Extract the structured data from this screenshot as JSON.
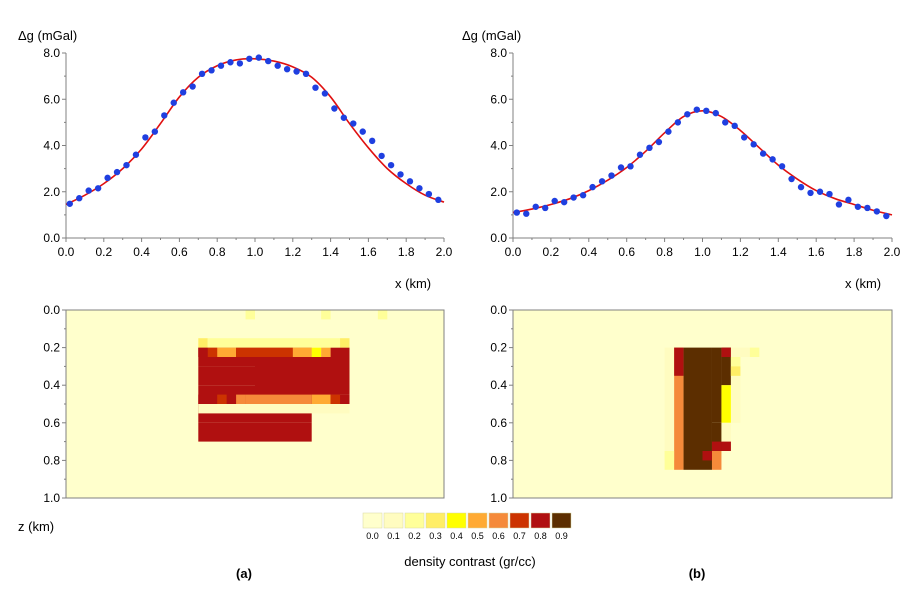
{
  "colors": {
    "observed": "#1f3fe0",
    "computed": "#e01010",
    "axis": "#808080",
    "frame": "#000000",
    "background_model": "#ffffcc"
  },
  "labels": {
    "panel_a": "(a)",
    "panel_b": "(b)",
    "z_axis": "z (km)",
    "colorbar_title": "density contrast (gr/cc)"
  },
  "colorbar": {
    "ticks": [
      "0.0",
      "0.1",
      "0.2",
      "0.3",
      "0.4",
      "0.5",
      "0.6",
      "0.7",
      "0.8",
      "0.9"
    ],
    "colors": [
      "#ffffcc",
      "#fffcc0",
      "#ffff99",
      "#ffee66",
      "#ffff00",
      "#ffaa33",
      "#f58a3a",
      "#cc3300",
      "#b01010",
      "#5c2e00"
    ]
  },
  "chart_data": [
    {
      "type": "scatter+line",
      "panel": "a",
      "ylabel": "Δg (mGal)",
      "xlabel": "x (km)",
      "xlim": [
        0.0,
        2.0
      ],
      "ylim": [
        0.0,
        8.0
      ],
      "xticks": [
        "0.0",
        "0.2",
        "0.4",
        "0.6",
        "0.8",
        "1.0",
        "1.2",
        "1.4",
        "1.6",
        "1.8",
        "2.0"
      ],
      "yticks": [
        "0.0",
        "2.0",
        "4.0",
        "6.0",
        "8.0"
      ],
      "series": [
        {
          "role": "observed",
          "x": [
            0.02,
            0.07,
            0.12,
            0.17,
            0.22,
            0.27,
            0.32,
            0.37,
            0.42,
            0.47,
            0.52,
            0.57,
            0.62,
            0.67,
            0.72,
            0.77,
            0.82,
            0.87,
            0.92,
            0.97,
            1.02,
            1.07,
            1.12,
            1.17,
            1.22,
            1.27,
            1.32,
            1.37,
            1.42,
            1.47,
            1.52,
            1.57,
            1.62,
            1.67,
            1.72,
            1.77,
            1.82,
            1.87,
            1.92,
            1.97
          ],
          "y": [
            1.48,
            1.72,
            2.05,
            2.15,
            2.6,
            2.85,
            3.15,
            3.6,
            4.35,
            4.6,
            5.3,
            5.85,
            6.3,
            6.55,
            7.1,
            7.25,
            7.45,
            7.6,
            7.55,
            7.75,
            7.8,
            7.65,
            7.45,
            7.3,
            7.2,
            7.1,
            6.5,
            6.25,
            5.6,
            5.2,
            4.95,
            4.6,
            4.2,
            3.55,
            3.15,
            2.75,
            2.45,
            2.15,
            1.9,
            1.65
          ]
        },
        {
          "role": "computed",
          "x": [
            0.0,
            0.1,
            0.2,
            0.3,
            0.4,
            0.5,
            0.6,
            0.7,
            0.8,
            0.9,
            1.0,
            1.1,
            1.2,
            1.3,
            1.4,
            1.5,
            1.6,
            1.7,
            1.8,
            1.9,
            2.0
          ],
          "y": [
            1.45,
            1.85,
            2.35,
            3.0,
            3.85,
            4.95,
            6.1,
            6.95,
            7.45,
            7.7,
            7.75,
            7.65,
            7.4,
            6.95,
            6.1,
            4.95,
            3.9,
            3.0,
            2.35,
            1.85,
            1.55
          ]
        }
      ]
    },
    {
      "type": "scatter+line",
      "panel": "b",
      "ylabel": "Δg (mGal)",
      "xlabel": "x (km)",
      "xlim": [
        0.0,
        2.0
      ],
      "ylim": [
        0.0,
        8.0
      ],
      "xticks": [
        "0.0",
        "0.2",
        "0.4",
        "0.6",
        "0.8",
        "1.0",
        "1.2",
        "1.4",
        "1.6",
        "1.8",
        "2.0"
      ],
      "yticks": [
        "0.0",
        "2.0",
        "4.0",
        "6.0",
        "8.0"
      ],
      "series": [
        {
          "role": "observed",
          "x": [
            0.02,
            0.07,
            0.12,
            0.17,
            0.22,
            0.27,
            0.32,
            0.37,
            0.42,
            0.47,
            0.52,
            0.57,
            0.62,
            0.67,
            0.72,
            0.77,
            0.82,
            0.87,
            0.92,
            0.97,
            1.02,
            1.07,
            1.12,
            1.17,
            1.22,
            1.27,
            1.32,
            1.37,
            1.42,
            1.47,
            1.52,
            1.57,
            1.62,
            1.67,
            1.72,
            1.77,
            1.82,
            1.87,
            1.92,
            1.97
          ],
          "y": [
            1.1,
            1.05,
            1.35,
            1.3,
            1.6,
            1.55,
            1.75,
            1.85,
            2.2,
            2.45,
            2.7,
            3.05,
            3.1,
            3.6,
            3.9,
            4.15,
            4.6,
            5.0,
            5.35,
            5.55,
            5.5,
            5.4,
            5.0,
            4.85,
            4.35,
            4.05,
            3.65,
            3.4,
            3.1,
            2.55,
            2.2,
            1.95,
            2.0,
            1.9,
            1.45,
            1.65,
            1.35,
            1.3,
            1.15,
            0.95
          ]
        },
        {
          "role": "computed",
          "x": [
            0.0,
            0.1,
            0.2,
            0.3,
            0.4,
            0.5,
            0.6,
            0.7,
            0.8,
            0.9,
            1.0,
            1.1,
            1.2,
            1.3,
            1.4,
            1.5,
            1.6,
            1.7,
            1.8,
            1.9,
            2.0
          ],
          "y": [
            1.1,
            1.25,
            1.45,
            1.7,
            2.05,
            2.5,
            3.05,
            3.75,
            4.55,
            5.25,
            5.5,
            5.25,
            4.65,
            3.9,
            3.15,
            2.55,
            2.05,
            1.7,
            1.45,
            1.2,
            1.0
          ]
        }
      ]
    },
    {
      "type": "heatmap",
      "panel": "a",
      "xlim": [
        0.0,
        2.0
      ],
      "ylim": [
        0.0,
        1.0
      ],
      "yticks": [
        "0.0",
        "0.2",
        "0.4",
        "0.6",
        "0.8",
        "1.0"
      ],
      "grid_cols": 40,
      "grid_rows": 20,
      "background": 0.0,
      "cells": [
        {
          "r0": 8,
          "r1": 12,
          "c0": 14,
          "c1": 26,
          "v": 0.8
        },
        {
          "r0": 12,
          "r1": 14,
          "c0": 14,
          "c1": 26,
          "v": 0.8
        },
        {
          "r0": 4,
          "r1": 6,
          "c0": 14,
          "c1": 26,
          "v": 0.8
        },
        {
          "r0": 6,
          "r1": 8,
          "c0": 14,
          "c1": 26,
          "v": 0.8
        },
        {
          "r0": 4,
          "r1": 5,
          "c0": 14,
          "c1": 15,
          "v": 0.8
        },
        {
          "r0": 4,
          "r1": 5,
          "c0": 15,
          "c1": 16,
          "v": 0.7
        },
        {
          "r0": 4,
          "r1": 5,
          "c0": 16,
          "c1": 18,
          "v": 0.5
        },
        {
          "r0": 4,
          "r1": 5,
          "c0": 18,
          "c1": 24,
          "v": 0.7
        },
        {
          "r0": 4,
          "r1": 5,
          "c0": 24,
          "c1": 26,
          "v": 0.5
        },
        {
          "r0": 4,
          "r1": 5,
          "c0": 26,
          "c1": 27,
          "v": 0.4
        },
        {
          "r0": 4,
          "r1": 5,
          "c0": 27,
          "c1": 28,
          "v": 0.5
        },
        {
          "r0": 4,
          "r1": 5,
          "c0": 28,
          "c1": 30,
          "v": 0.8
        },
        {
          "r0": 4,
          "r1": 10,
          "c0": 30,
          "c1": 30,
          "v": 0.8
        },
        {
          "r0": 5,
          "r1": 9,
          "c0": 20,
          "c1": 30,
          "v": 0.8
        },
        {
          "r0": 9,
          "r1": 10,
          "c0": 20,
          "c1": 30,
          "v": 0.8
        },
        {
          "r0": 9,
          "r1": 10,
          "c0": 26,
          "c1": 28,
          "v": 0.5
        },
        {
          "r0": 9,
          "r1": 10,
          "c0": 28,
          "c1": 29,
          "v": 0.7
        },
        {
          "r0": 9,
          "r1": 10,
          "c0": 14,
          "c1": 18,
          "v": 0.8
        },
        {
          "r0": 9,
          "r1": 10,
          "c0": 18,
          "c1": 19,
          "v": 0.6
        },
        {
          "r0": 9,
          "r1": 10,
          "c0": 19,
          "c1": 26,
          "v": 0.6
        },
        {
          "r0": 9,
          "r1": 10,
          "c0": 16,
          "c1": 17,
          "v": 0.7
        },
        {
          "r0": 10,
          "r1": 11,
          "c0": 14,
          "c1": 30,
          "v": 0.1
        },
        {
          "r0": 3,
          "r1": 4,
          "c0": 14,
          "c1": 15,
          "v": 0.3
        },
        {
          "r0": 3,
          "r1": 4,
          "c0": 15,
          "c1": 29,
          "v": 0.2
        },
        {
          "r0": 3,
          "r1": 4,
          "c0": 29,
          "c1": 30,
          "v": 0.3
        },
        {
          "r0": 0,
          "r1": 1,
          "c0": 19,
          "c1": 20,
          "v": 0.2
        },
        {
          "r0": 0,
          "r1": 1,
          "c0": 27,
          "c1": 28,
          "v": 0.2
        },
        {
          "r0": 0,
          "r1": 1,
          "c0": 33,
          "c1": 34,
          "v": 0.2
        }
      ]
    },
    {
      "type": "heatmap",
      "panel": "b",
      "xlim": [
        0.0,
        2.0
      ],
      "ylim": [
        0.0,
        1.0
      ],
      "yticks": [
        "0.0",
        "0.2",
        "0.4",
        "0.6",
        "0.8",
        "1.0"
      ],
      "grid_cols": 40,
      "grid_rows": 20,
      "background": 0.0,
      "cells": [
        {
          "r0": 4,
          "r1": 17,
          "c0": 17,
          "c1": 18,
          "v": 0.6
        },
        {
          "r0": 4,
          "r1": 5,
          "c0": 17,
          "c1": 18,
          "v": 0.8
        },
        {
          "r0": 5,
          "r1": 7,
          "c0": 17,
          "c1": 18,
          "v": 0.8
        },
        {
          "r0": 4,
          "r1": 17,
          "c0": 18,
          "c1": 21,
          "v": 0.9
        },
        {
          "r0": 4,
          "r1": 12,
          "c0": 21,
          "c1": 22,
          "v": 0.9
        },
        {
          "r0": 12,
          "r1": 15,
          "c0": 21,
          "c1": 22,
          "v": 0.9
        },
        {
          "r0": 15,
          "r1": 17,
          "c0": 21,
          "c1": 22,
          "v": 0.6
        },
        {
          "r0": 14,
          "r1": 15,
          "c0": 21,
          "c1": 22,
          "v": 0.8
        },
        {
          "r0": 4,
          "r1": 8,
          "c0": 22,
          "c1": 23,
          "v": 0.9
        },
        {
          "r0": 4,
          "r1": 5,
          "c0": 22,
          "c1": 23,
          "v": 0.8
        },
        {
          "r0": 8,
          "r1": 12,
          "c0": 22,
          "c1": 23,
          "v": 0.4
        },
        {
          "r0": 12,
          "r1": 14,
          "c0": 22,
          "c1": 23,
          "v": 0.1
        },
        {
          "r0": 14,
          "r1": 15,
          "c0": 22,
          "c1": 23,
          "v": 0.8
        },
        {
          "r0": 15,
          "r1": 16,
          "c0": 20,
          "c1": 21,
          "v": 0.8
        },
        {
          "r0": 4,
          "r1": 16,
          "c0": 16,
          "c1": 17,
          "v": 0.1
        },
        {
          "r0": 15,
          "r1": 17,
          "c0": 16,
          "c1": 17,
          "v": 0.2
        },
        {
          "r0": 4,
          "r1": 12,
          "c0": 23,
          "c1": 24,
          "v": 0.1
        },
        {
          "r0": 5,
          "r1": 7,
          "c0": 23,
          "c1": 24,
          "v": 0.2
        },
        {
          "r0": 6,
          "r1": 7,
          "c0": 23,
          "c1": 24,
          "v": 0.3
        },
        {
          "r0": 4,
          "r1": 5,
          "c0": 24,
          "c1": 25,
          "v": 0.1
        },
        {
          "r0": 4,
          "r1": 5,
          "c0": 25,
          "c1": 26,
          "v": 0.2
        }
      ]
    }
  ]
}
